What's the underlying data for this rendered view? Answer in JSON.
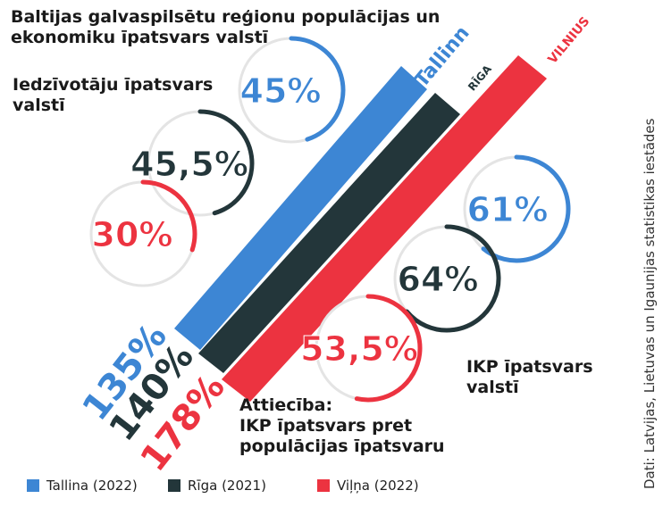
{
  "title": "Baltijas galvaspilsētu reģionu populācijas un ekonomiku īpatsvars valstī",
  "population_label": "Iedzīvotāju īpatsvars valstī",
  "gdp_label": "IKP īpatsvars valstī",
  "ratio_title": "Attiecība:",
  "ratio_text": "IKP īpatsvars pret populācijas īpatsvaru",
  "source": "Dati: Latvijas, Lietuvas un Igaunijas statistikas iestādes",
  "cities": [
    {
      "name": "Tallinn",
      "legend": "Tallina (2022)",
      "color": "#3d86d4",
      "population": {
        "value": 45,
        "label": "45%"
      },
      "gdp": {
        "value": 61,
        "label": "61%"
      },
      "ratio": "135%"
    },
    {
      "name": "RĪGA",
      "legend": "Rīga (2021)",
      "color": "#23363a",
      "population": {
        "value": 45.5,
        "label": "45,5%"
      },
      "gdp": {
        "value": 64,
        "label": "64%"
      },
      "ratio": "140%"
    },
    {
      "name": "VILNIUS",
      "legend": "Viļņa (2022)",
      "color": "#ec3340",
      "population": {
        "value": 30,
        "label": "30%"
      },
      "gdp": {
        "value": 53.5,
        "label": "53,5%"
      },
      "ratio": "178%"
    }
  ]
}
